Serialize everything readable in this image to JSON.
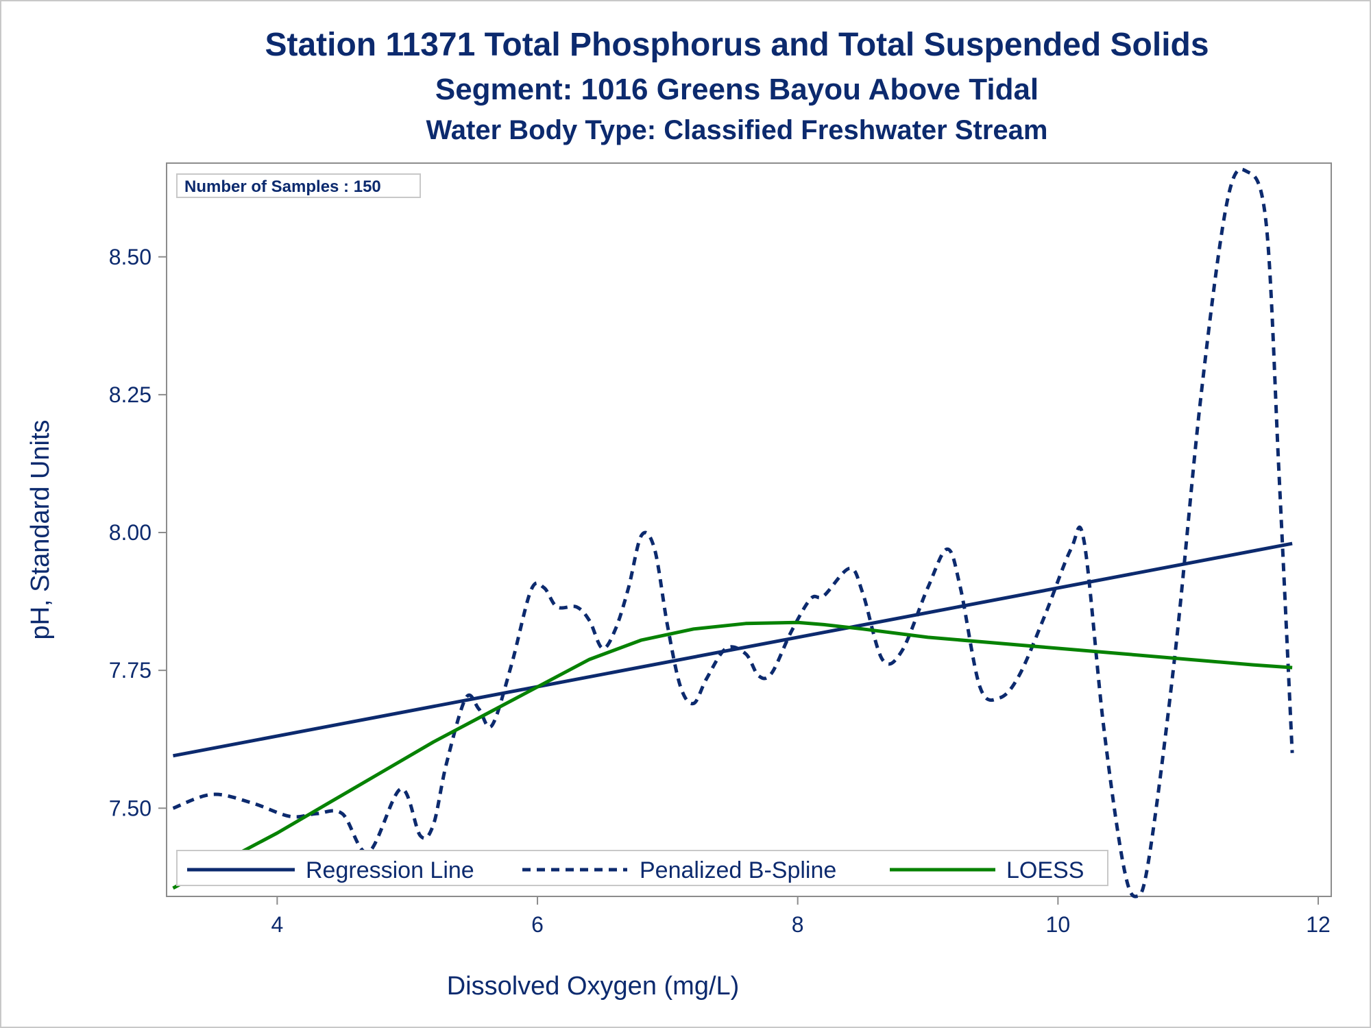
{
  "chart_data": {
    "type": "line",
    "title": "Station 11371  Total Phosphorus and Total Suspended Solids",
    "subtitle": "Segment: 1016  Greens Bayou Above Tidal",
    "subtitle2": "Water Body Type: Classified Freshwater Stream",
    "xlabel": "Dissolved Oxygen (mg/L)",
    "ylabel": "pH, Standard Units",
    "xlim": [
      3.15,
      12.1
    ],
    "ylim": [
      7.34,
      8.67
    ],
    "xticks": [
      4,
      6,
      8,
      10,
      12
    ],
    "xtick_labels": [
      "4",
      "6",
      "8",
      "10",
      "12"
    ],
    "yticks": [
      7.5,
      7.75,
      8.0,
      8.25,
      8.5
    ],
    "ytick_labels": [
      "7.50",
      "7.75",
      "8.00",
      "8.25",
      "8.50"
    ],
    "annotation": "Number of Samples : 150",
    "legend_position": "bottom-inside",
    "grid": false,
    "series": [
      {
        "name": "Regression Line",
        "style": "solid",
        "color": "#0c2a6e",
        "x": [
          3.2,
          11.8
        ],
        "y": [
          7.595,
          7.98
        ]
      },
      {
        "name": "Penalized B-Spline",
        "style": "dashed",
        "color": "#0c2a6e",
        "x": [
          3.2,
          3.5,
          3.8,
          4.1,
          4.3,
          4.5,
          4.7,
          4.95,
          5.1,
          5.2,
          5.3,
          5.45,
          5.55,
          5.65,
          5.8,
          5.95,
          6.05,
          6.15,
          6.3,
          6.4,
          6.5,
          6.6,
          6.7,
          6.8,
          6.9,
          7.0,
          7.1,
          7.2,
          7.3,
          7.45,
          7.6,
          7.7,
          7.8,
          7.95,
          8.1,
          8.2,
          8.4,
          8.5,
          8.65,
          8.8,
          9.0,
          9.15,
          9.25,
          9.4,
          9.55,
          9.7,
          9.9,
          10.1,
          10.2,
          10.35,
          10.5,
          10.6,
          10.7,
          10.9,
          11.1,
          11.3,
          11.45,
          11.6,
          11.7,
          11.8
        ],
        "y": [
          7.5,
          7.525,
          7.51,
          7.485,
          7.49,
          7.49,
          7.42,
          7.535,
          7.45,
          7.47,
          7.58,
          7.7,
          7.68,
          7.65,
          7.76,
          7.895,
          7.9,
          7.865,
          7.865,
          7.84,
          7.79,
          7.825,
          7.9,
          7.995,
          7.97,
          7.83,
          7.72,
          7.69,
          7.735,
          7.79,
          7.78,
          7.74,
          7.745,
          7.82,
          7.88,
          7.885,
          7.935,
          7.89,
          7.77,
          7.785,
          7.9,
          7.97,
          7.9,
          7.72,
          7.7,
          7.74,
          7.85,
          7.97,
          7.985,
          7.65,
          7.4,
          7.34,
          7.41,
          7.78,
          8.25,
          8.6,
          8.655,
          8.56,
          8.1,
          7.6
        ]
      },
      {
        "name": "LOESS",
        "style": "solid",
        "color": "#078203",
        "x": [
          3.2,
          3.6,
          4.0,
          4.4,
          4.8,
          5.2,
          5.6,
          6.0,
          6.4,
          6.8,
          7.2,
          7.6,
          8.0,
          8.2,
          8.5,
          9.0,
          9.5,
          10.0,
          10.5,
          11.0,
          11.5,
          11.8
        ],
        "y": [
          7.355,
          7.405,
          7.455,
          7.51,
          7.565,
          7.62,
          7.67,
          7.72,
          7.77,
          7.805,
          7.825,
          7.835,
          7.837,
          7.833,
          7.825,
          7.81,
          7.8,
          7.79,
          7.78,
          7.77,
          7.76,
          7.755
        ]
      }
    ]
  }
}
